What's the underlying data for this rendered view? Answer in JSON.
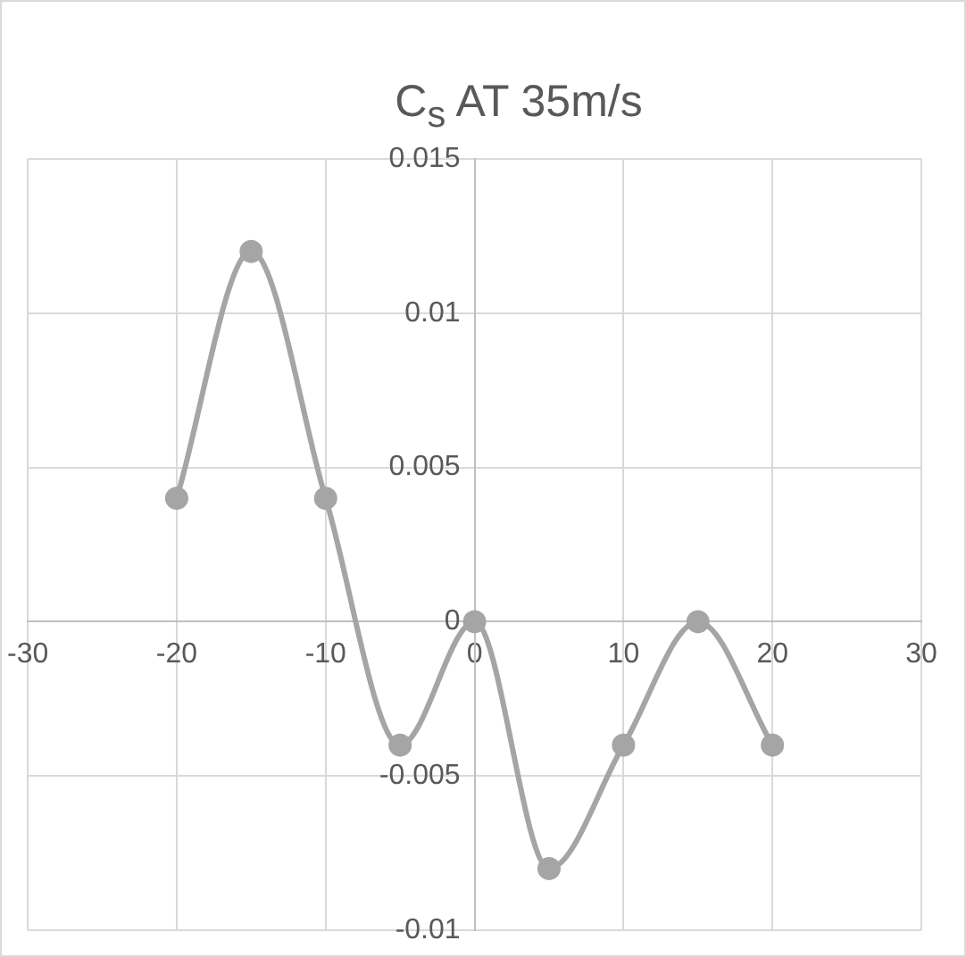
{
  "chart_data": {
    "type": "line",
    "title": "C$_{s}$ AT 35m/s",
    "x": [
      -20,
      -15,
      -10,
      -5,
      0,
      5,
      10,
      15,
      20
    ],
    "series": [
      {
        "color": "#a5a5a5",
        "values": [
          0.004,
          0.012,
          0.004,
          -0.004,
          0,
          -0.008,
          -0.004,
          0,
          -0.004
        ]
      }
    ],
    "xlim": [
      -30,
      30
    ],
    "xticks": [
      -30,
      -20,
      -10,
      0,
      10,
      20,
      30
    ],
    "ylim": [
      -0.01,
      0.015
    ],
    "yticks": [
      -0.01,
      -0.005,
      0,
      0.005,
      0.01,
      0.015
    ],
    "grid": true,
    "legend": false,
    "marker": "circle",
    "line_style": "solid"
  }
}
